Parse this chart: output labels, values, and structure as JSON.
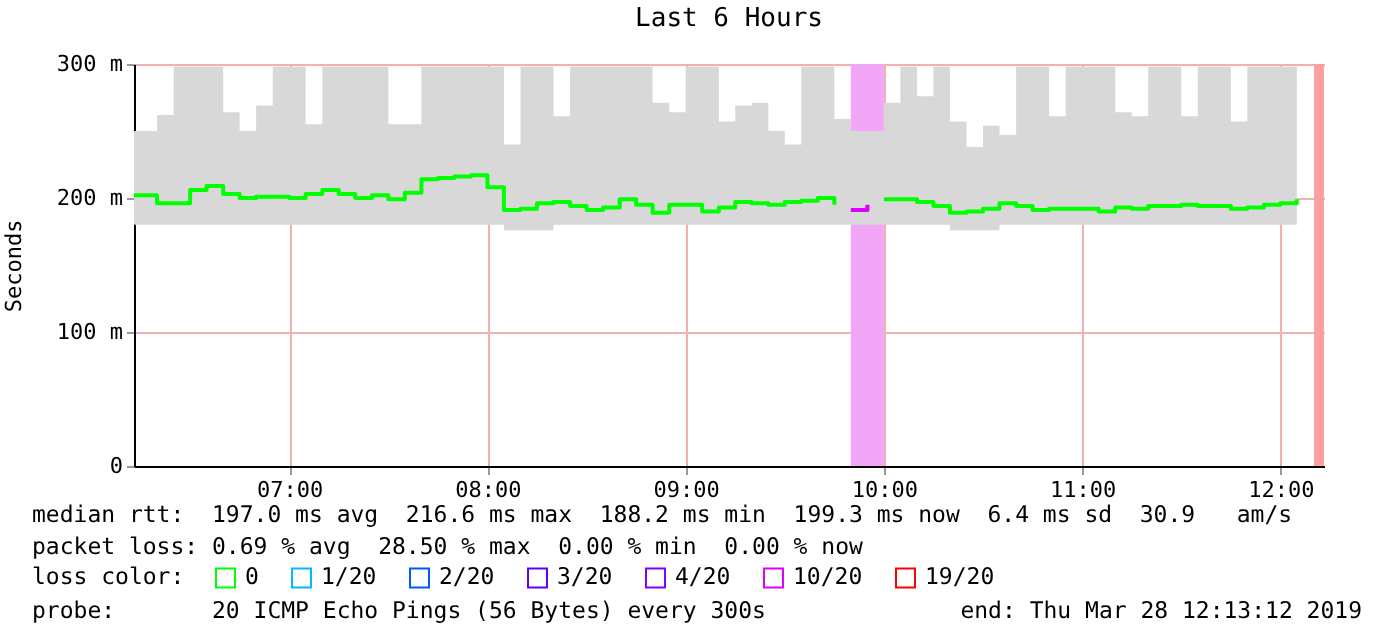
{
  "chart_data": {
    "type": "step",
    "title": "Last 6 Hours",
    "ylabel": "Seconds",
    "legend_title": "loss color:",
    "x": [
      6.217,
      6.333,
      6.417,
      6.5,
      6.583,
      6.667,
      6.75,
      6.833,
      6.917,
      7,
      7.083,
      7.167,
      7.25,
      7.333,
      7.417,
      7.5,
      7.583,
      7.667,
      7.75,
      7.833,
      7.917,
      8,
      8.083,
      8.167,
      8.25,
      8.333,
      8.417,
      8.5,
      8.583,
      8.667,
      8.75,
      8.833,
      8.917,
      9,
      9.083,
      9.167,
      9.25,
      9.333,
      9.417,
      9.5,
      9.583,
      9.667,
      9.75,
      9.833,
      9.917,
      10,
      10.083,
      10.167,
      10.25,
      10.333,
      10.417,
      10.5,
      10.583,
      10.667,
      10.75,
      10.833,
      10.917,
      11,
      11.083,
      11.167,
      11.25,
      11.333,
      11.417,
      11.5,
      11.583,
      11.667,
      11.75,
      11.833,
      11.917,
      12,
      12.083
    ],
    "series": [
      {
        "name": "0",
        "color": "#00ff00",
        "values": [
          202,
          196,
          196,
          206,
          209,
          203,
          200,
          201,
          201,
          200,
          203,
          206,
          203,
          200,
          202,
          199,
          204,
          214,
          215,
          216,
          217,
          208,
          191,
          192,
          196,
          197,
          194,
          191,
          193,
          199,
          195,
          189,
          195,
          195,
          190,
          193,
          197,
          196,
          195,
          197,
          198,
          200,
          195,
          null,
          null,
          199,
          199,
          197,
          194,
          189,
          190,
          192,
          196,
          194,
          191,
          192,
          192,
          192,
          190,
          193,
          192,
          194,
          194,
          195,
          194,
          194,
          192,
          193,
          195,
          196,
          199
        ],
        "lower": [
          180,
          180,
          180,
          180,
          180,
          180,
          180,
          180,
          180,
          180,
          180,
          180,
          180,
          180,
          180,
          180,
          180,
          180,
          180,
          180,
          180,
          180,
          176,
          176,
          176,
          180,
          180,
          180,
          180,
          180,
          180,
          180,
          180,
          180,
          180,
          180,
          180,
          180,
          180,
          180,
          180,
          180,
          180,
          180,
          180,
          180,
          180,
          180,
          180,
          176,
          176,
          176,
          180,
          180,
          180,
          180,
          180,
          180,
          180,
          180,
          180,
          180,
          180,
          180,
          180,
          180,
          180,
          180,
          180,
          180,
          180
        ],
        "upper": [
          250,
          262,
          298,
          298,
          298,
          264,
          250,
          269,
          298,
          298,
          255,
          298,
          298,
          298,
          298,
          255,
          255,
          298,
          298,
          298,
          298,
          298,
          240,
          298,
          298,
          261,
          298,
          298,
          298,
          298,
          298,
          271,
          264,
          298,
          298,
          257,
          269,
          271,
          250,
          240,
          298,
          298,
          259,
          250,
          250,
          271,
          298,
          276,
          298,
          257,
          238,
          254,
          247,
          298,
          298,
          261,
          298,
          298,
          298,
          264,
          261,
          298,
          298,
          261,
          298,
          298,
          257,
          298,
          298,
          298,
          250
        ]
      },
      {
        "name": "1/20",
        "color": "#00b8ff",
        "values": [
          null,
          null,
          null,
          null,
          null,
          null,
          null,
          null,
          null,
          null,
          null,
          null,
          null,
          null,
          null,
          null,
          null,
          null,
          null,
          null,
          null,
          null,
          null,
          null,
          null,
          null,
          null,
          null,
          null,
          null,
          null,
          null,
          null,
          null,
          null,
          null,
          null,
          null,
          null,
          null,
          null,
          null,
          null,
          null,
          null,
          null,
          null,
          null,
          null,
          null,
          null,
          null,
          null,
          null,
          null,
          null,
          null,
          null,
          null,
          null,
          null,
          null,
          null,
          null,
          null,
          null,
          null,
          null,
          null,
          null,
          null
        ]
      },
      {
        "name": "2/20",
        "color": "#0059ff",
        "values": [
          null,
          null,
          null,
          null,
          null,
          null,
          null,
          null,
          null,
          null,
          null,
          null,
          null,
          null,
          null,
          null,
          null,
          null,
          null,
          null,
          null,
          null,
          null,
          null,
          null,
          null,
          null,
          null,
          null,
          null,
          null,
          null,
          null,
          null,
          null,
          null,
          null,
          null,
          null,
          null,
          null,
          null,
          null,
          null,
          null,
          null,
          null,
          null,
          null,
          null,
          null,
          null,
          null,
          null,
          null,
          null,
          null,
          null,
          null,
          null,
          null,
          null,
          null,
          null,
          null,
          null,
          null,
          null,
          null,
          null,
          null
        ]
      },
      {
        "name": "3/20",
        "color": "#5e00ff",
        "values": [
          null,
          null,
          null,
          null,
          null,
          null,
          null,
          null,
          null,
          null,
          null,
          null,
          null,
          null,
          null,
          null,
          null,
          null,
          null,
          null,
          null,
          null,
          null,
          null,
          null,
          null,
          null,
          null,
          null,
          null,
          null,
          null,
          null,
          null,
          null,
          null,
          null,
          null,
          null,
          null,
          null,
          null,
          null,
          null,
          null,
          null,
          null,
          null,
          null,
          null,
          null,
          null,
          null,
          null,
          null,
          null,
          null,
          null,
          null,
          null,
          null,
          null,
          null,
          null,
          null,
          null,
          null,
          null,
          null,
          null,
          null
        ]
      },
      {
        "name": "4/20",
        "color": "#7e00ff",
        "values": [
          null,
          null,
          null,
          null,
          null,
          null,
          null,
          null,
          null,
          null,
          null,
          null,
          null,
          null,
          null,
          null,
          null,
          null,
          null,
          null,
          null,
          null,
          null,
          null,
          null,
          null,
          null,
          null,
          null,
          null,
          null,
          null,
          null,
          null,
          null,
          null,
          null,
          null,
          null,
          null,
          null,
          null,
          null,
          null,
          null,
          null,
          null,
          null,
          null,
          null,
          null,
          null,
          null,
          null,
          null,
          null,
          null,
          null,
          null,
          null,
          null,
          null,
          null,
          null,
          null,
          null,
          null,
          null,
          null,
          null,
          null
        ]
      },
      {
        "name": "10/20",
        "color": "#dd00ff",
        "x": [
          9.833,
          9.917
        ],
        "values": [
          191,
          195
        ]
      },
      {
        "name": "19/20",
        "color": "#ff0000",
        "values": [
          null,
          null,
          null,
          null,
          null,
          null,
          null,
          null,
          null,
          null,
          null,
          null,
          null,
          null,
          null,
          null,
          null,
          null,
          null,
          null,
          null,
          null,
          null,
          null,
          null,
          null,
          null,
          null,
          null,
          null,
          null,
          null,
          null,
          null,
          null,
          null,
          null,
          null,
          null,
          null,
          null,
          null,
          null,
          null,
          null,
          null,
          null,
          null,
          null,
          null,
          null,
          null,
          null,
          null,
          null,
          null,
          null,
          null,
          null,
          null,
          null,
          null,
          null,
          null,
          null,
          null,
          null,
          null,
          null,
          null,
          null
        ]
      }
    ],
    "xlim": [
      6.217,
      12.22
    ],
    "xticks": [
      {
        "value": 7,
        "label": "07:00"
      },
      {
        "value": 8,
        "label": "08:00"
      },
      {
        "value": 9,
        "label": "09:00"
      },
      {
        "value": 10,
        "label": "10:00"
      },
      {
        "value": 11,
        "label": "11:00"
      },
      {
        "value": 12,
        "label": "12:00"
      }
    ],
    "ylim": [
      0,
      300
    ],
    "yticks": [
      0,
      {
        "value": 100,
        "label": "100 m"
      },
      {
        "value": 200,
        "label": "200 m"
      },
      {
        "value": 300,
        "label": "300 m"
      }
    ],
    "bands": [
      {
        "axis": "x",
        "from": 9.833,
        "to": 10,
        "color": "#f2a6f7"
      },
      {
        "axis": "x",
        "from": 12.17,
        "to": 12.22,
        "color": "#ff9f9f"
      }
    ],
    "grid": true,
    "legend": "bottom",
    "annotations": [
      "median rtt:  197.0 ms avg  216.6 ms max  188.2 ms min  199.3 ms now  6.4 ms sd  30.9   am/s",
      "packet loss: 0.69 % avg  28.50 % max  0.00 % min  0.00 % now",
      "probe:       20 ICMP Echo Pings (56 Bytes) every 300s",
      "end: Thu Mar 28 12:13:12 2019"
    ]
  }
}
